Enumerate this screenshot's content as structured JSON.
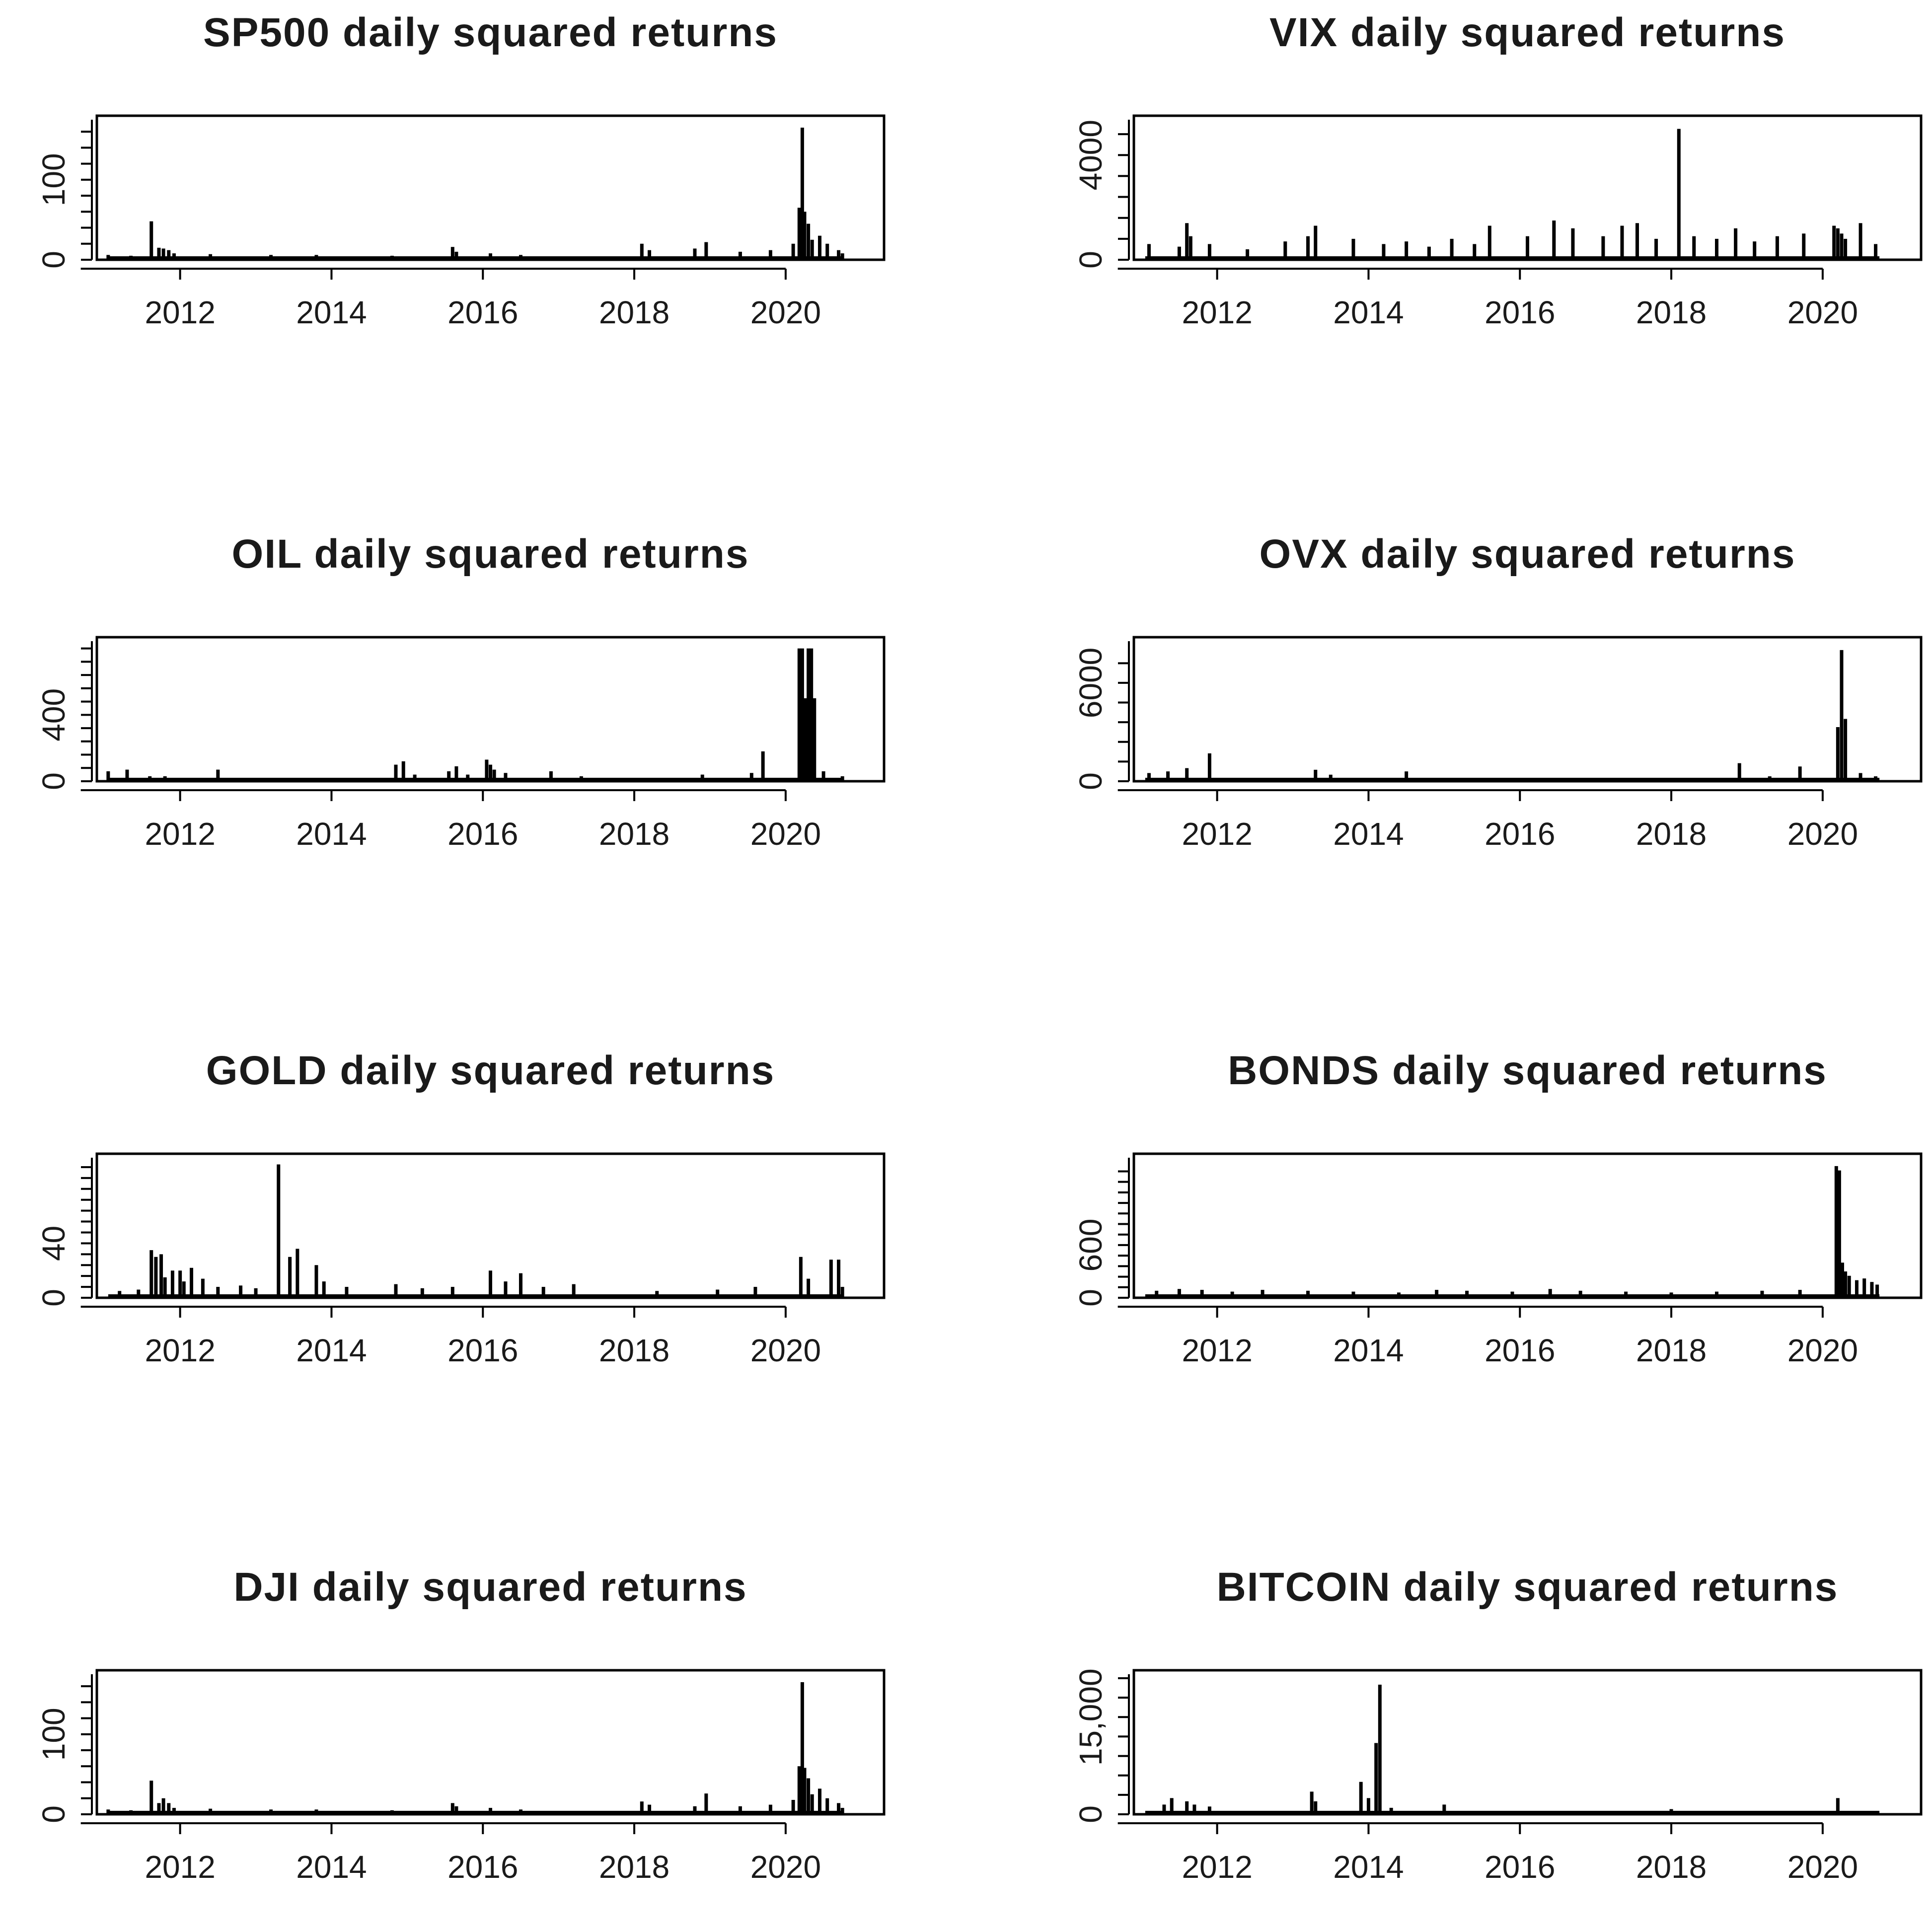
{
  "colors": {
    "bars": "#000000",
    "background": "#ffffff",
    "text": "#1a1a1a",
    "bitcoin_ytick": "#1f6fc4"
  },
  "chart_data": [
    {
      "type": "bar",
      "title": "SP500 daily squared returns",
      "xlabel": "",
      "ylabel": "",
      "xlim": [
        2010.9,
        2021.3
      ],
      "ylim": [
        0,
        170
      ],
      "xticks": [
        2012,
        2014,
        2016,
        2018,
        2020
      ],
      "xtick_labels": [
        "2012",
        "2014",
        "2016",
        "2018",
        "2020"
      ],
      "yticks": [
        0,
        100
      ],
      "ytick_labels": [
        "0",
        "100"
      ],
      "ytick_color": null,
      "grid": false,
      "x": [
        2011.05,
        2011.35,
        2011.62,
        2011.72,
        2011.78,
        2011.85,
        2011.92,
        2012.4,
        2013.2,
        2013.8,
        2014.8,
        2015.6,
        2015.65,
        2016.1,
        2016.5,
        2017.1,
        2018.1,
        2018.2,
        2018.8,
        2018.95,
        2019.4,
        2019.8,
        2020.1,
        2020.18,
        2020.22,
        2020.25,
        2020.3,
        2020.35,
        2020.45,
        2020.55,
        2020.7,
        2020.75
      ],
      "values": [
        6,
        5,
        48,
        15,
        14,
        12,
        8,
        7,
        6,
        6,
        5,
        16,
        10,
        8,
        6,
        4,
        20,
        12,
        14,
        22,
        10,
        12,
        20,
        65,
        165,
        60,
        45,
        25,
        30,
        20,
        12,
        8
      ]
    },
    {
      "type": "bar",
      "title": "VIX daily squared returns",
      "xlabel": "",
      "ylabel": "",
      "xlim": [
        2010.9,
        2021.3
      ],
      "ylim": [
        0,
        5200
      ],
      "xticks": [
        2012,
        2014,
        2016,
        2018,
        2020
      ],
      "xtick_labels": [
        "2012",
        "2014",
        "2016",
        "2018",
        "2020"
      ],
      "yticks": [
        0,
        4000
      ],
      "ytick_labels": [
        "0",
        "4000"
      ],
      "ytick_color": null,
      "grid": false,
      "x": [
        2011.1,
        2011.5,
        2011.6,
        2011.65,
        2011.9,
        2012.4,
        2012.9,
        2013.2,
        2013.3,
        2013.8,
        2014.2,
        2014.5,
        2014.8,
        2015.1,
        2015.4,
        2015.6,
        2016.1,
        2016.45,
        2016.7,
        2017.1,
        2017.35,
        2017.55,
        2017.8,
        2018.1,
        2018.3,
        2018.6,
        2018.85,
        2019.1,
        2019.4,
        2019.75,
        2020.15,
        2020.2,
        2020.25,
        2020.3,
        2020.5,
        2020.7
      ],
      "values": [
        600,
        500,
        1400,
        900,
        600,
        400,
        700,
        900,
        1300,
        800,
        600,
        700,
        500,
        800,
        600,
        1300,
        900,
        1500,
        1200,
        900,
        1300,
        1400,
        800,
        5000,
        900,
        800,
        1200,
        700,
        900,
        1000,
        1300,
        1200,
        1000,
        800,
        1400,
        600
      ]
    },
    {
      "type": "bar",
      "title": "OIL daily squared returns",
      "xlabel": "",
      "ylabel": "",
      "xlim": [
        2010.9,
        2021.3
      ],
      "ylim": [
        0,
        820
      ],
      "xticks": [
        2012,
        2014,
        2016,
        2018,
        2020
      ],
      "xtick_labels": [
        "2012",
        "2014",
        "2016",
        "2018",
        "2020"
      ],
      "yticks": [
        0,
        400
      ],
      "ytick_labels": [
        "0",
        "400"
      ],
      "ytick_color": null,
      "grid": false,
      "x": [
        2011.05,
        2011.3,
        2011.6,
        2011.8,
        2012.5,
        2014.85,
        2014.95,
        2015.1,
        2015.55,
        2015.65,
        2015.8,
        2016.05,
        2016.1,
        2016.15,
        2016.3,
        2016.9,
        2017.3,
        2018.9,
        2019.55,
        2019.7,
        2020.18,
        2020.22,
        2020.26,
        2020.3,
        2020.34,
        2020.38,
        2020.5,
        2020.75
      ],
      "values": [
        60,
        70,
        30,
        30,
        70,
        100,
        120,
        40,
        60,
        90,
        40,
        130,
        100,
        70,
        50,
        60,
        30,
        40,
        50,
        180,
        800,
        800,
        500,
        800,
        800,
        500,
        60,
        30
      ]
    },
    {
      "type": "bar",
      "title": "OVX daily squared returns",
      "xlabel": "",
      "ylabel": "",
      "xlim": [
        2010.9,
        2021.3
      ],
      "ylim": [
        0,
        8300
      ],
      "xticks": [
        2012,
        2014,
        2016,
        2018,
        2020
      ],
      "xtick_labels": [
        "2012",
        "2014",
        "2016",
        "2018",
        "2020"
      ],
      "yticks": [
        0,
        6000
      ],
      "ytick_labels": [
        "0",
        "6000"
      ],
      "ytick_color": null,
      "grid": false,
      "x": [
        2011.1,
        2011.35,
        2011.6,
        2011.9,
        2012.5,
        2013.3,
        2013.5,
        2014.5,
        2016.9,
        2017.3,
        2018.9,
        2019.3,
        2019.7,
        2020.2,
        2020.25,
        2020.3,
        2020.5,
        2020.7
      ],
      "values": [
        500,
        600,
        800,
        1700,
        200,
        700,
        400,
        600,
        200,
        200,
        1100,
        300,
        900,
        3300,
        8000,
        3800,
        500,
        300
      ]
    },
    {
      "type": "bar",
      "title": "GOLD daily squared returns",
      "xlabel": "",
      "ylabel": "",
      "xlim": [
        2010.9,
        2021.3
      ],
      "ylim": [
        0,
        100
      ],
      "xticks": [
        2012,
        2014,
        2016,
        2018,
        2020
      ],
      "xtick_labels": [
        "2012",
        "2014",
        "2016",
        "2018",
        "2020"
      ],
      "yticks": [
        0,
        40
      ],
      "ytick_labels": [
        "0",
        "40"
      ],
      "ytick_color": null,
      "grid": false,
      "x": [
        2011.2,
        2011.45,
        2011.62,
        2011.68,
        2011.75,
        2011.8,
        2011.9,
        2012.0,
        2012.05,
        2012.15,
        2012.3,
        2012.5,
        2012.8,
        2013.0,
        2013.3,
        2013.45,
        2013.55,
        2013.8,
        2013.9,
        2014.2,
        2014.85,
        2015.2,
        2015.6,
        2016.1,
        2016.3,
        2016.5,
        2016.8,
        2017.2,
        2018.3,
        2019.1,
        2019.6,
        2020.2,
        2020.3,
        2020.6,
        2020.7,
        2020.75
      ],
      "values": [
        5,
        6,
        35,
        30,
        32,
        15,
        20,
        20,
        12,
        22,
        14,
        8,
        9,
        7,
        98,
        30,
        36,
        24,
        12,
        8,
        10,
        7,
        8,
        20,
        12,
        18,
        8,
        10,
        5,
        6,
        8,
        30,
        14,
        28,
        28,
        8
      ]
    },
    {
      "type": "bar",
      "title": "BONDS daily squared returns",
      "xlabel": "",
      "ylabel": "",
      "xlim": [
        2010.9,
        2021.3
      ],
      "ylim": [
        0,
        1550
      ],
      "xticks": [
        2012,
        2014,
        2016,
        2018,
        2020
      ],
      "xtick_labels": [
        "2012",
        "2014",
        "2016",
        "2018",
        "2020"
      ],
      "yticks": [
        0,
        600
      ],
      "ytick_labels": [
        "0",
        "600"
      ],
      "ytick_color": null,
      "grid": false,
      "x": [
        2011.2,
        2011.5,
        2011.8,
        2012.2,
        2012.6,
        2013.2,
        2013.8,
        2014.4,
        2014.9,
        2015.3,
        2015.9,
        2016.4,
        2016.8,
        2017.4,
        2018.0,
        2018.6,
        2019.2,
        2019.7,
        2020.18,
        2020.22,
        2020.26,
        2020.3,
        2020.35,
        2020.45,
        2020.55,
        2020.65,
        2020.72
      ],
      "values": [
        80,
        100,
        90,
        70,
        90,
        80,
        70,
        60,
        90,
        80,
        70,
        100,
        80,
        70,
        60,
        70,
        80,
        90,
        1500,
        1450,
        400,
        300,
        250,
        200,
        220,
        180,
        150
      ]
    },
    {
      "type": "bar",
      "title": "DJI daily squared returns",
      "xlabel": "",
      "ylabel": "",
      "xlim": [
        2010.9,
        2021.3
      ],
      "ylim": [
        0,
        170
      ],
      "xticks": [
        2012,
        2014,
        2016,
        2018,
        2020
      ],
      "xtick_labels": [
        "2012",
        "2014",
        "2016",
        "2018",
        "2020"
      ],
      "yticks": [
        0,
        100
      ],
      "ytick_labels": [
        "0",
        "100"
      ],
      "ytick_color": null,
      "grid": false,
      "x": [
        2011.05,
        2011.35,
        2011.62,
        2011.72,
        2011.78,
        2011.85,
        2011.92,
        2012.4,
        2013.2,
        2013.8,
        2014.8,
        2015.6,
        2015.65,
        2016.1,
        2016.5,
        2017.1,
        2018.1,
        2018.2,
        2018.8,
        2018.95,
        2019.4,
        2019.8,
        2020.1,
        2020.18,
        2020.22,
        2020.25,
        2020.3,
        2020.35,
        2020.45,
        2020.55,
        2020.7,
        2020.75
      ],
      "values": [
        6,
        5,
        42,
        14,
        20,
        14,
        8,
        7,
        6,
        6,
        5,
        14,
        10,
        8,
        6,
        4,
        16,
        12,
        10,
        26,
        10,
        12,
        18,
        60,
        165,
        58,
        45,
        25,
        32,
        20,
        14,
        8
      ]
    },
    {
      "type": "bar",
      "title": "BITCOIN daily squared returns",
      "xlabel": "",
      "ylabel": "",
      "xlim": [
        2010.9,
        2021.3
      ],
      "ylim": [
        0,
        21000
      ],
      "xticks": [
        2012,
        2014,
        2016,
        2018,
        2020
      ],
      "xtick_labels": [
        "2012",
        "2014",
        "2016",
        "2018",
        "2020"
      ],
      "yticks": [
        0,
        15000
      ],
      "ytick_labels": [
        "0",
        "15,000"
      ],
      "ytick_color": "#1f6fc4",
      "grid": false,
      "x": [
        2011.3,
        2011.4,
        2011.6,
        2011.7,
        2011.9,
        2013.25,
        2013.3,
        2013.9,
        2014.0,
        2014.1,
        2014.15,
        2014.3,
        2015.0,
        2018.0,
        2020.2
      ],
      "values": [
        1500,
        2500,
        2000,
        1500,
        1200,
        3500,
        2000,
        5000,
        2500,
        11000,
        20000,
        1000,
        1500,
        800,
        2500
      ]
    }
  ]
}
